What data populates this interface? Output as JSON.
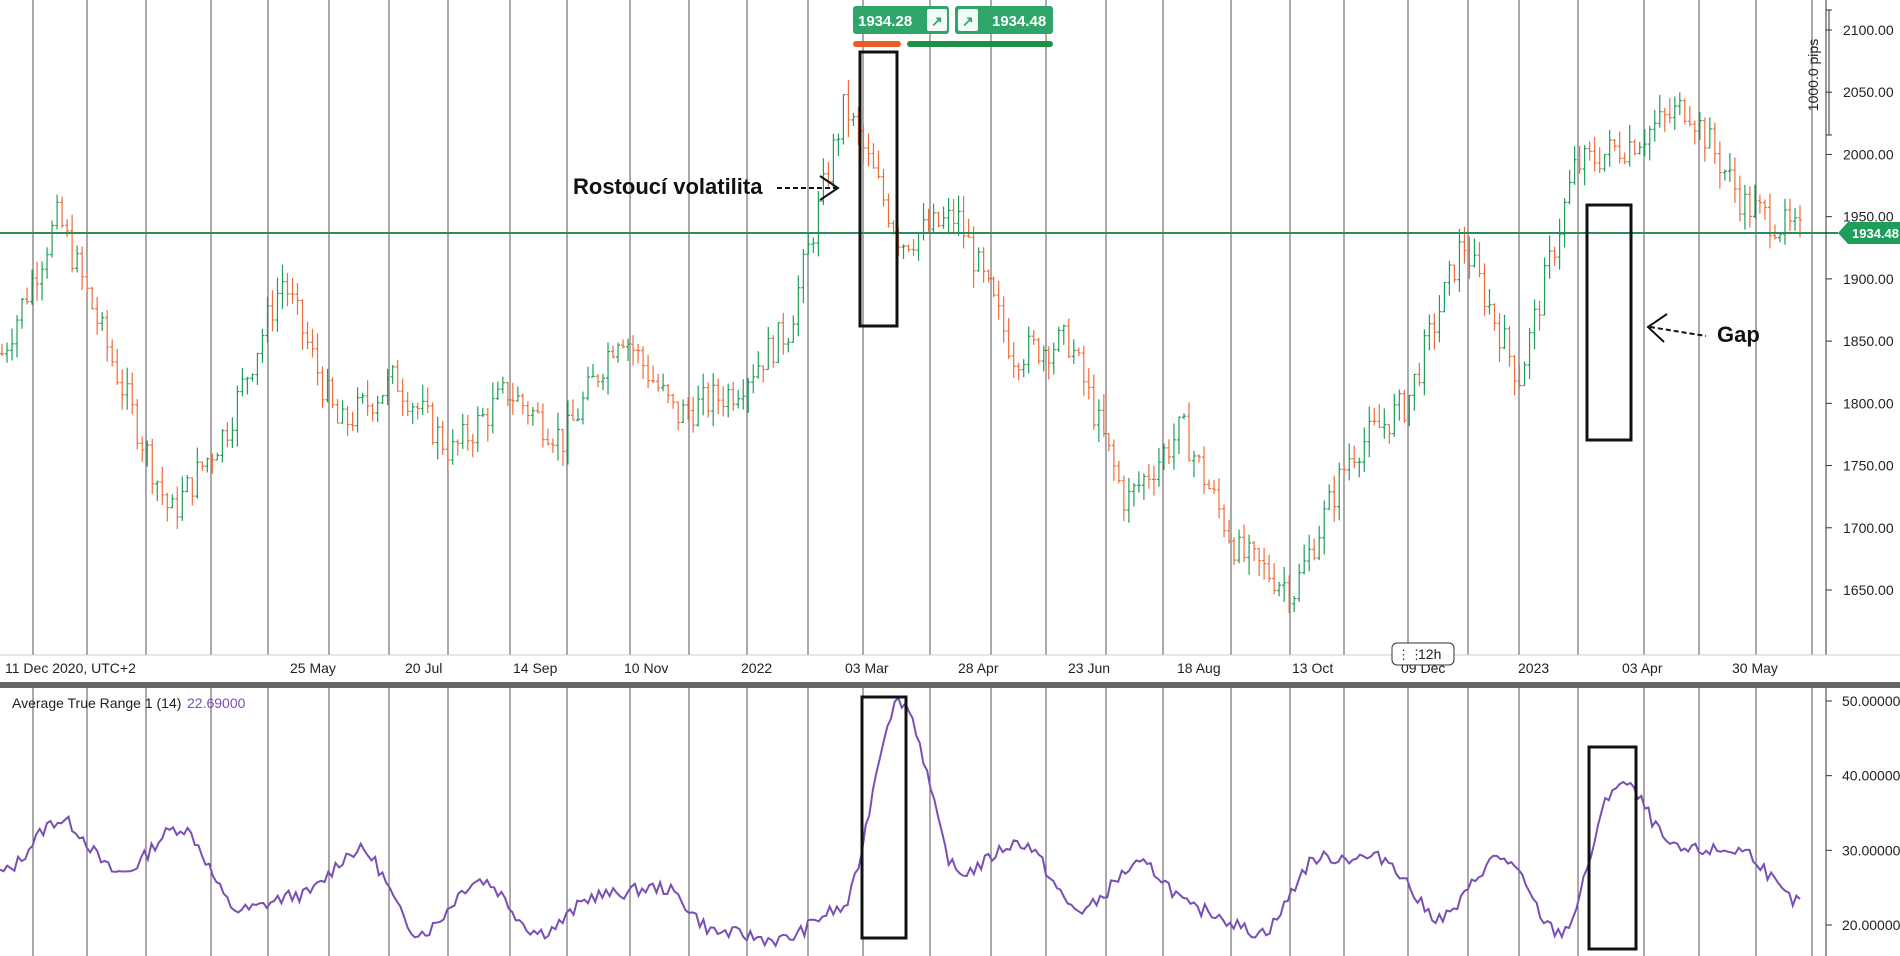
{
  "buy_sell": {
    "sell_price": "1934.28",
    "buy_price": "1934.48",
    "arrow_symbol": "↗"
  },
  "price_axis": {
    "ticks": [
      "2100.00",
      "2050.00",
      "2000.00",
      "1950.00",
      "1900.00",
      "1850.00",
      "1800.00",
      "1750.00",
      "1700.00",
      "1650.00"
    ],
    "pips_label": "1000.0 pips",
    "current_price_tag": "1934.48"
  },
  "time_axis": {
    "labels": [
      "11 Dec 2020, UTC+2",
      "25 May",
      "20 Jul",
      "14 Sep",
      "10 Nov",
      "2022",
      "03 Mar",
      "28 Apr",
      "23 Jun",
      "18 Aug",
      "13 Oct",
      "09 Dec",
      "2023",
      "03 Apr",
      "30 May"
    ],
    "timeframe": "12h"
  },
  "annotations": {
    "rising_volatility": "Rostoucí volatilita",
    "gap": "Gap"
  },
  "indicator": {
    "name": "Average True Range 1 (14)",
    "value": "22.69000",
    "ticks": [
      "50.00000",
      "40.00000",
      "30.00000",
      "20.00000"
    ]
  },
  "colors": {
    "up_candle": "#1f9d5a",
    "down_candle": "#ee6c3a",
    "price_line": "#2e8b57",
    "atr_line": "#7a4fb5",
    "green_button": "#2fa56a",
    "red_bar": "#ea5a2b",
    "green_bar": "#1f9147"
  },
  "chart_data": [
    {
      "type": "candlestick",
      "title": "",
      "ylim": [
        1610,
        2120
      ],
      "current_price": 1934.48,
      "x": [
        "11 Dec 2020",
        "25 May",
        "20 Jul",
        "14 Sep",
        "10 Nov",
        "2022",
        "03 Mar",
        "28 Apr",
        "23 Jun",
        "18 Aug",
        "13 Oct",
        "09 Dec",
        "2023",
        "03 Apr",
        "30 May"
      ],
      "close_approx": [
        1860,
        1900,
        1810,
        1790,
        1850,
        1800,
        1970,
        1900,
        1830,
        1760,
        1650,
        1780,
        1920,
        1990,
        1950
      ],
      "anchors": [
        {
          "x": "Dec 2020",
          "y": 1840
        },
        {
          "x": "Jan 2021",
          "y": 1950
        },
        {
          "x": "Feb 2021",
          "y": 1830
        },
        {
          "x": "Mar 2021",
          "y": 1710
        },
        {
          "x": "Apr 2021",
          "y": 1780
        },
        {
          "x": "May 2021",
          "y": 1900
        },
        {
          "x": "Jun 2021",
          "y": 1780
        },
        {
          "x": "Jul 2021",
          "y": 1820
        },
        {
          "x": "Aug 2021",
          "y": 1760
        },
        {
          "x": "Sep 2021",
          "y": 1810
        },
        {
          "x": "Oct 2021",
          "y": 1770
        },
        {
          "x": "Nov 2021",
          "y": 1860
        },
        {
          "x": "Dec 2021",
          "y": 1790
        },
        {
          "x": "Jan 2022",
          "y": 1810
        },
        {
          "x": "Feb 2022",
          "y": 1860
        },
        {
          "x": "Mar 2022",
          "y": 2040
        },
        {
          "x": "Mar 2022",
          "y": 1930
        },
        {
          "x": "Apr 2022",
          "y": 1950
        },
        {
          "x": "May 2022",
          "y": 1840
        },
        {
          "x": "Jun 2022",
          "y": 1850
        },
        {
          "x": "Jul 2022",
          "y": 1720
        },
        {
          "x": "Aug 2022",
          "y": 1780
        },
        {
          "x": "Sep 2022",
          "y": 1680
        },
        {
          "x": "Oct 2022",
          "y": 1650
        },
        {
          "x": "Nov 2022",
          "y": 1760
        },
        {
          "x": "Dec 2022",
          "y": 1800
        },
        {
          "x": "Jan 2023",
          "y": 1930
        },
        {
          "x": "Feb 2023",
          "y": 1820
        },
        {
          "x": "Mar 2023",
          "y": 1990
        },
        {
          "x": "Apr 2023",
          "y": 2010
        },
        {
          "x": "May 2023",
          "y": 2040
        },
        {
          "x": "May 2023",
          "y": 1960
        },
        {
          "x": "Jun 2023",
          "y": 1935
        }
      ]
    },
    {
      "type": "line",
      "title": "Average True Range 1 (14)",
      "ylim": [
        17,
        52
      ],
      "last_value": 22.69,
      "anchors": [
        {
          "x": "Dec 2020",
          "y": 27
        },
        {
          "x": "Jan 2021",
          "y": 34
        },
        {
          "x": "Feb 2021",
          "y": 27
        },
        {
          "x": "Mar 2021",
          "y": 33
        },
        {
          "x": "Apr 2021",
          "y": 22
        },
        {
          "x": "May 2021",
          "y": 24
        },
        {
          "x": "Jun 2021",
          "y": 30
        },
        {
          "x": "Jul 2021",
          "y": 19
        },
        {
          "x": "Aug 2021",
          "y": 26
        },
        {
          "x": "Sep 2021",
          "y": 19
        },
        {
          "x": "Oct 2021",
          "y": 24
        },
        {
          "x": "Nov 2021",
          "y": 25
        },
        {
          "x": "Dec 2021",
          "y": 19
        },
        {
          "x": "Jan 2022",
          "y": 18
        },
        {
          "x": "Feb 2022",
          "y": 22
        },
        {
          "x": "Mar 2022",
          "y": 50
        },
        {
          "x": "Apr 2022",
          "y": 27
        },
        {
          "x": "May 2022",
          "y": 31
        },
        {
          "x": "Jun 2022",
          "y": 22
        },
        {
          "x": "Jul 2022",
          "y": 28
        },
        {
          "x": "Aug 2022",
          "y": 22
        },
        {
          "x": "Sep 2022",
          "y": 19
        },
        {
          "x": "Oct 2022",
          "y": 29
        },
        {
          "x": "Nov 2022",
          "y": 29
        },
        {
          "x": "Dec 2022",
          "y": 21
        },
        {
          "x": "Jan 2023",
          "y": 29
        },
        {
          "x": "Feb 2023",
          "y": 19
        },
        {
          "x": "Mar 2023",
          "y": 39
        },
        {
          "x": "Apr 2023",
          "y": 30
        },
        {
          "x": "May 2023",
          "y": 30
        },
        {
          "x": "Jun 2023",
          "y": 23
        }
      ]
    }
  ]
}
